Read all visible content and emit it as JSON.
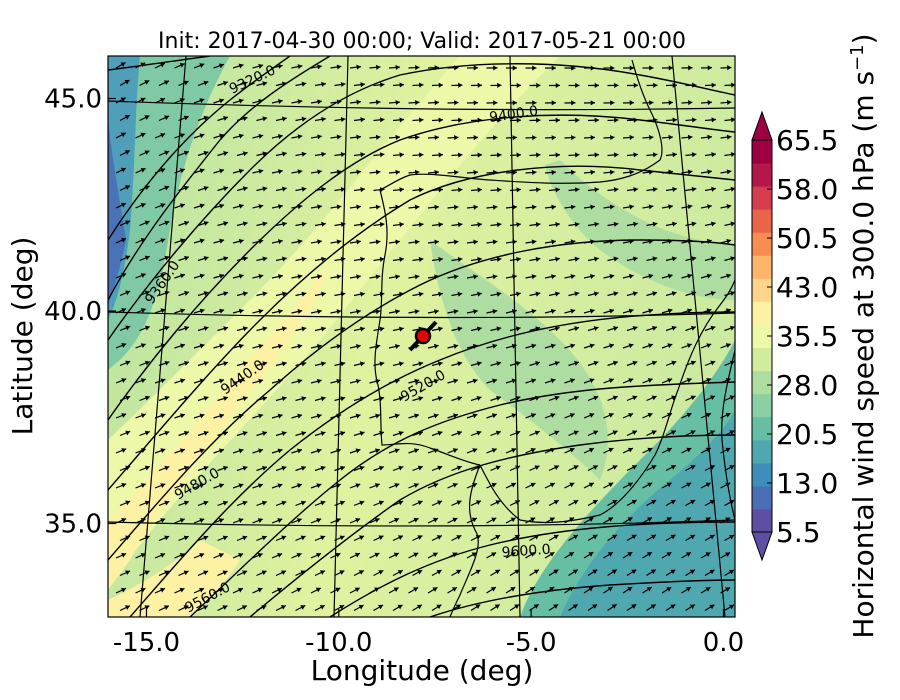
{
  "chart_data": {
    "type": "heatmap",
    "title": "Init: 2017-04-30 00:00; Valid: 2017-05-21 00:00",
    "xlabel": "Longitude (deg)",
    "ylabel": "Latitude (deg)",
    "xlim": [
      -16.0,
      0.3
    ],
    "ylim": [
      32.8,
      46.0
    ],
    "x_ticks": [
      -15.0,
      -10.0,
      -5.0,
      0.0
    ],
    "x_tick_labels": [
      "-15.0",
      "-10.0",
      "-5.0",
      "0.0"
    ],
    "y_ticks": [
      35.0,
      40.0,
      45.0
    ],
    "y_tick_labels": [
      "35.0",
      "40.0",
      "45.0"
    ],
    "colorbar": {
      "label": "Horizontal wind speed at 300.0 hPa (m s$^{-1}$)",
      "label_main": "Horizontal wind speed at 300.0 hPa (m s",
      "label_sup": "−1",
      "label_close": ")",
      "min": 5.5,
      "max": 65.5,
      "ticks": [
        5.5,
        13.0,
        20.5,
        28.0,
        35.5,
        43.0,
        50.5,
        58.0,
        65.5
      ],
      "tick_labels": [
        "5.5",
        "13.0",
        "20.5",
        "28.0",
        "35.5",
        "43.0",
        "50.5",
        "58.0",
        "65.5"
      ],
      "colors": [
        "#5e4fa2",
        "#4a6fb5",
        "#3d8fba",
        "#4fa8b0",
        "#66bfa5",
        "#8bcfa4",
        "#aedda2",
        "#d2ec9e",
        "#eef8a9",
        "#fdf1a4",
        "#fed58a",
        "#fdb56b",
        "#f88d52",
        "#ea6447",
        "#d53e4f",
        "#b2184b",
        "#9e0142"
      ]
    },
    "contour_labels": [
      "9320.0",
      "9360.0",
      "9400.0",
      "9440.0",
      "9480.0",
      "9520.0",
      "9560.0",
      "9600.0"
    ],
    "marker": {
      "lon": -7.6,
      "lat": 39.35,
      "color": "#e60000"
    }
  }
}
